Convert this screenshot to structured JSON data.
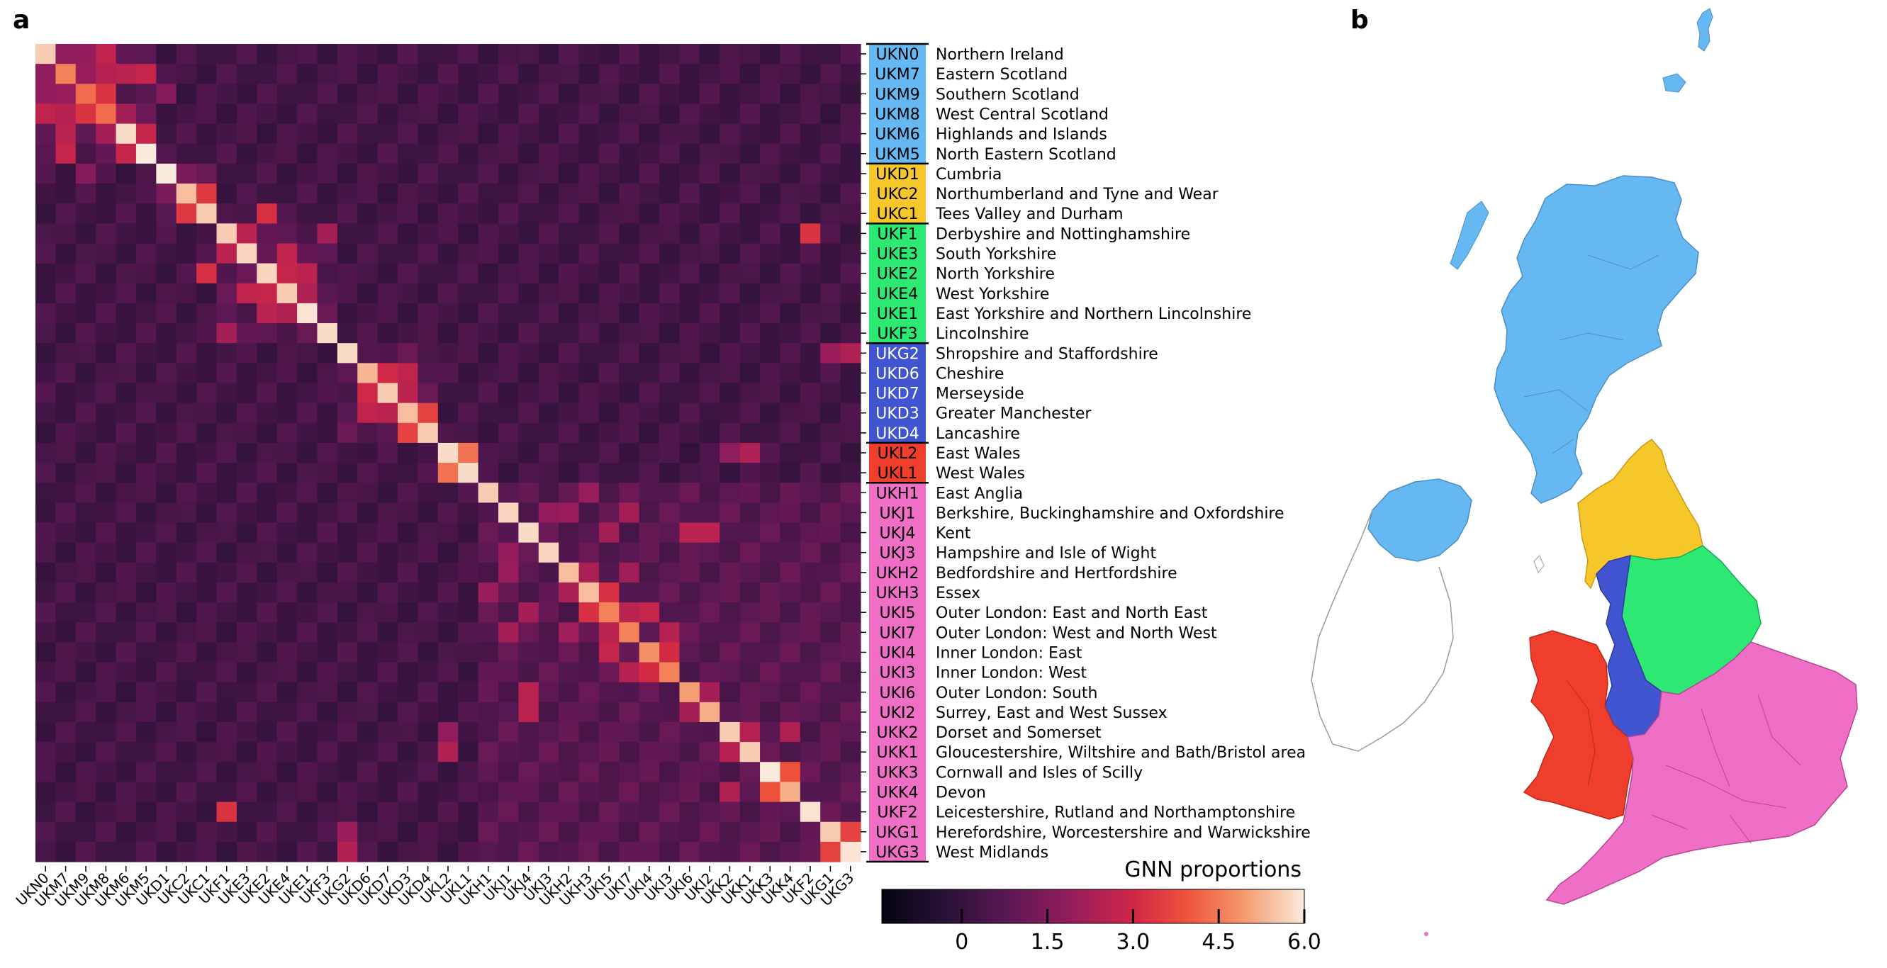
{
  "panel_a_label": "a",
  "panel_b_label": "b",
  "colors": {
    "Scotland_NI": "#66b8f2",
    "North_East_Cumbria": "#f5c72b",
    "Yorkshire_EastMidlands": "#2ee874",
    "West_NorthWest": "#4255d1",
    "Wales": "#ef3e2c",
    "South_England": "#ef6fc6"
  },
  "chart_data": {
    "type": "heatmap",
    "title": "",
    "xlabel": "",
    "ylabel": "",
    "colorbar": {
      "label": "GNN proportions",
      "tick_labels": [
        "0",
        "1.5",
        "3.0",
        "4.5",
        "6.0"
      ],
      "tick_values": [
        0,
        1.5,
        3.0,
        4.5,
        6.0
      ],
      "range": [
        -1.4,
        6.0
      ],
      "colormap": "rocket"
    },
    "legend_placement": "right",
    "regions": [
      {
        "code": "UKN0",
        "name": "Northern Ireland",
        "group": "Scotland_NI"
      },
      {
        "code": "UKM7",
        "name": "Eastern Scotland",
        "group": "Scotland_NI"
      },
      {
        "code": "UKM9",
        "name": "Southern Scotland",
        "group": "Scotland_NI"
      },
      {
        "code": "UKM8",
        "name": "West Central Scotland",
        "group": "Scotland_NI"
      },
      {
        "code": "UKM6",
        "name": "Highlands and Islands",
        "group": "Scotland_NI"
      },
      {
        "code": "UKM5",
        "name": "North Eastern Scotland",
        "group": "Scotland_NI"
      },
      {
        "code": "UKD1",
        "name": "Cumbria",
        "group": "North_East_Cumbria"
      },
      {
        "code": "UKC2",
        "name": "Northumberland and Tyne and Wear",
        "group": "North_East_Cumbria"
      },
      {
        "code": "UKC1",
        "name": "Tees Valley and Durham",
        "group": "North_East_Cumbria"
      },
      {
        "code": "UKF1",
        "name": "Derbyshire and Nottinghamshire",
        "group": "Yorkshire_EastMidlands"
      },
      {
        "code": "UKE3",
        "name": "South Yorkshire",
        "group": "Yorkshire_EastMidlands"
      },
      {
        "code": "UKE2",
        "name": "North Yorkshire",
        "group": "Yorkshire_EastMidlands"
      },
      {
        "code": "UKE4",
        "name": "West Yorkshire",
        "group": "Yorkshire_EastMidlands"
      },
      {
        "code": "UKE1",
        "name": "East Yorkshire and Northern Lincolnshire",
        "group": "Yorkshire_EastMidlands"
      },
      {
        "code": "UKF3",
        "name": "Lincolnshire",
        "group": "Yorkshire_EastMidlands"
      },
      {
        "code": "UKG2",
        "name": "Shropshire and Staffordshire",
        "group": "West_NorthWest"
      },
      {
        "code": "UKD6",
        "name": "Cheshire",
        "group": "West_NorthWest"
      },
      {
        "code": "UKD7",
        "name": "Merseyside",
        "group": "West_NorthWest"
      },
      {
        "code": "UKD3",
        "name": "Greater Manchester",
        "group": "West_NorthWest"
      },
      {
        "code": "UKD4",
        "name": "Lancashire",
        "group": "West_NorthWest"
      },
      {
        "code": "UKL2",
        "name": "East Wales",
        "group": "Wales"
      },
      {
        "code": "UKL1",
        "name": "West Wales",
        "group": "Wales"
      },
      {
        "code": "UKH1",
        "name": "East Anglia",
        "group": "South_England"
      },
      {
        "code": "UKJ1",
        "name": "Berkshire, Buckinghamshire and Oxfordshire",
        "group": "South_England"
      },
      {
        "code": "UKJ4",
        "name": "Kent",
        "group": "South_England"
      },
      {
        "code": "UKJ3",
        "name": "Hampshire and Isle of Wight",
        "group": "South_England"
      },
      {
        "code": "UKH2",
        "name": "Bedfordshire and Hertfordshire",
        "group": "South_England"
      },
      {
        "code": "UKH3",
        "name": "Essex",
        "group": "South_England"
      },
      {
        "code": "UKI5",
        "name": "Outer London: East and North East",
        "group": "South_England"
      },
      {
        "code": "UKI7",
        "name": "Outer London: West and North West",
        "group": "South_England"
      },
      {
        "code": "UKI4",
        "name": "Inner London: East",
        "group": "South_England"
      },
      {
        "code": "UKI3",
        "name": "Inner London: West",
        "group": "South_England"
      },
      {
        "code": "UKI6",
        "name": "Outer London: South",
        "group": "South_England"
      },
      {
        "code": "UKI2",
        "name": "Surrey, East and West Sussex",
        "group": "South_England"
      },
      {
        "code": "UKK2",
        "name": "Dorset and Somerset",
        "group": "South_England"
      },
      {
        "code": "UKK1",
        "name": "Gloucestershire, Wiltshire and Bath/Bristol area",
        "group": "South_England"
      },
      {
        "code": "UKK3",
        "name": "Cornwall and Isles of Scilly",
        "group": "South_England"
      },
      {
        "code": "UKK4",
        "name": "Devon",
        "group": "South_England"
      },
      {
        "code": "UKF2",
        "name": "Leicestershire, Rutland and Northamptonshire",
        "group": "South_England"
      },
      {
        "code": "UKG1",
        "name": "Herefordshire, Worcestershire and Warwickshire",
        "group": "South_England"
      },
      {
        "code": "UKG3",
        "name": "West Midlands",
        "group": "South_England"
      }
    ],
    "diagonal": [
      5.6,
      4.6,
      4.3,
      4.3,
      5.8,
      6.0,
      6.0,
      5.4,
      5.6,
      5.6,
      5.7,
      5.7,
      5.6,
      5.9,
      5.8,
      5.8,
      5.3,
      5.6,
      5.4,
      5.6,
      5.8,
      5.8,
      5.6,
      5.7,
      5.8,
      5.7,
      5.4,
      5.4,
      4.6,
      4.6,
      4.8,
      4.6,
      5.0,
      5.2,
      5.6,
      5.6,
      6.0,
      5.2,
      5.9,
      5.6,
      5.9
    ],
    "base_off_diagonal": 0.3,
    "highlights": [
      {
        "row": "UKN0",
        "col": "UKM7",
        "value": 1.8
      },
      {
        "row": "UKN0",
        "col": "UKM9",
        "value": 1.9
      },
      {
        "row": "UKN0",
        "col": "UKM8",
        "value": 2.7
      },
      {
        "row": "UKN0",
        "col": "UKM6",
        "value": 0.9
      },
      {
        "row": "UKM7",
        "col": "UKM9",
        "value": 2.0
      },
      {
        "row": "UKM7",
        "col": "UKM8",
        "value": 2.5
      },
      {
        "row": "UKM7",
        "col": "UKM6",
        "value": 2.6
      },
      {
        "row": "UKM7",
        "col": "UKM5",
        "value": 2.8
      },
      {
        "row": "UKM9",
        "col": "UKM8",
        "value": 3.3
      },
      {
        "row": "UKM9",
        "col": "UKD1",
        "value": 1.6
      },
      {
        "row": "UKM8",
        "col": "UKM6",
        "value": 2.2
      },
      {
        "row": "UKM6",
        "col": "UKM5",
        "value": 2.8
      },
      {
        "row": "UKD1",
        "col": "UKC2",
        "value": 1.4
      },
      {
        "row": "UKC2",
        "col": "UKC1",
        "value": 3.4
      },
      {
        "row": "UKC1",
        "col": "UKE2",
        "value": 3.2
      },
      {
        "row": "UKF1",
        "col": "UKE3",
        "value": 2.6
      },
      {
        "row": "UKF1",
        "col": "UKF3",
        "value": 2.2
      },
      {
        "row": "UKF1",
        "col": "UKF2",
        "value": 3.3
      },
      {
        "row": "UKE3",
        "col": "UKE4",
        "value": 2.7
      },
      {
        "row": "UKE2",
        "col": "UKE4",
        "value": 2.8
      },
      {
        "row": "UKE2",
        "col": "UKE1",
        "value": 2.6
      },
      {
        "row": "UKE4",
        "col": "UKE1",
        "value": 2.4
      },
      {
        "row": "UKG2",
        "col": "UKG1",
        "value": 2.0
      },
      {
        "row": "UKG2",
        "col": "UKG3",
        "value": 2.4
      },
      {
        "row": "UKD6",
        "col": "UKD7",
        "value": 3.0
      },
      {
        "row": "UKD6",
        "col": "UKD3",
        "value": 2.7
      },
      {
        "row": "UKD7",
        "col": "UKD3",
        "value": 2.6
      },
      {
        "row": "UKD3",
        "col": "UKD4",
        "value": 3.6
      },
      {
        "row": "UKL2",
        "col": "UKL1",
        "value": 4.4
      },
      {
        "row": "UKL2",
        "col": "UKK1",
        "value": 2.4
      },
      {
        "row": "UKL2",
        "col": "UKK2",
        "value": 1.8
      },
      {
        "row": "UKH1",
        "col": "UKH3",
        "value": 2.0
      },
      {
        "row": "UKJ1",
        "col": "UKH2",
        "value": 2.0
      },
      {
        "row": "UKJ1",
        "col": "UKI7",
        "value": 2.2
      },
      {
        "row": "UKJ1",
        "col": "UKJ3",
        "value": 1.9
      },
      {
        "row": "UKJ4",
        "col": "UKI6",
        "value": 2.6
      },
      {
        "row": "UKJ4",
        "col": "UKI2",
        "value": 2.6
      },
      {
        "row": "UKJ4",
        "col": "UKI5",
        "value": 2.2
      },
      {
        "row": "UKH2",
        "col": "UKH3",
        "value": 2.3
      },
      {
        "row": "UKH2",
        "col": "UKI7",
        "value": 2.1
      },
      {
        "row": "UKH3",
        "col": "UKI5",
        "value": 3.2
      },
      {
        "row": "UKI5",
        "col": "UKI7",
        "value": 2.6
      },
      {
        "row": "UKI5",
        "col": "UKI4",
        "value": 2.8
      },
      {
        "row": "UKI7",
        "col": "UKI3",
        "value": 2.5
      },
      {
        "row": "UKI4",
        "col": "UKI3",
        "value": 3.1
      },
      {
        "row": "UKI6",
        "col": "UKI2",
        "value": 2.2
      },
      {
        "row": "UKK2",
        "col": "UKK1",
        "value": 2.5
      },
      {
        "row": "UKK2",
        "col": "UKK4",
        "value": 2.4
      },
      {
        "row": "UKK3",
        "col": "UKK4",
        "value": 3.9
      },
      {
        "row": "UKG1",
        "col": "UKG3",
        "value": 3.6
      }
    ]
  }
}
